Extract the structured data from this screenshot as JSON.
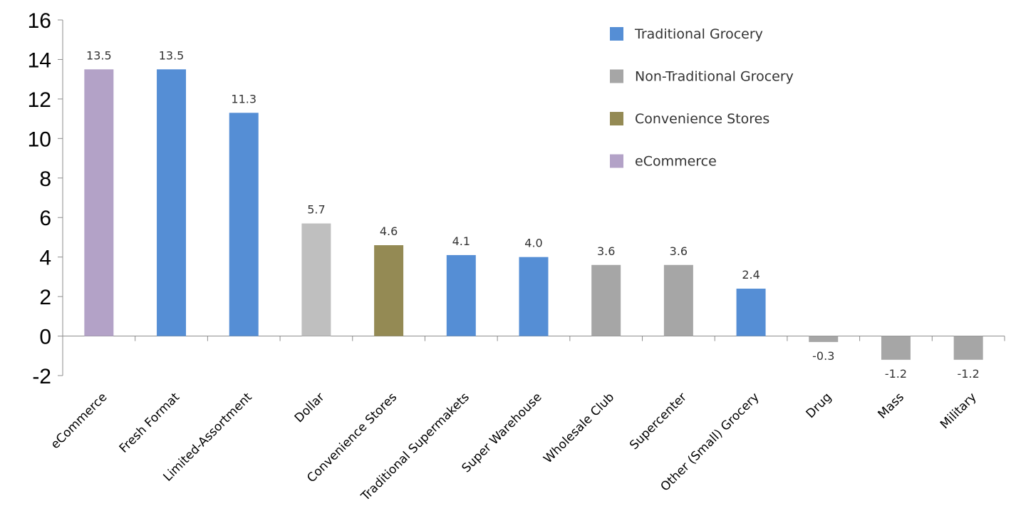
{
  "chart_data": {
    "type": "bar",
    "title": "",
    "xlabel": "",
    "ylabel": "",
    "ylim": [
      -2,
      16
    ],
    "yticks": [
      -2,
      0,
      2,
      4,
      6,
      8,
      10,
      12,
      14,
      16
    ],
    "grid": false,
    "legend_position": "top-right",
    "categories": [
      "eCommerce",
      "Fresh Format",
      "Limited-Assortment",
      "Dollar",
      "Convenience Stores",
      "Traditional Supermakets",
      "Super Warehouse",
      "Wholesale Club",
      "Supercenter",
      "Other (Small) Grocery",
      "Drug",
      "Mass",
      "Military"
    ],
    "values": [
      13.5,
      13.5,
      11.3,
      5.7,
      4.6,
      4.1,
      4.0,
      3.6,
      3.6,
      2.4,
      -0.3,
      -1.2,
      -1.2
    ],
    "data_labels": [
      "13.5",
      "13.5",
      "11.3",
      "5.7",
      "4.6",
      "4.1",
      "4.0",
      "3.6",
      "3.6",
      "2.4",
      "-0.3",
      "-1.2",
      "-1.2"
    ],
    "groups": [
      "eCommerce",
      "Traditional Grocery",
      "Traditional Grocery",
      "Non-Traditional Grocery",
      "Convenience Stores",
      "Traditional Grocery",
      "Traditional Grocery",
      "Non-Traditional Grocery",
      "Non-Traditional Grocery",
      "Traditional Grocery",
      "Non-Traditional Grocery",
      "Non-Traditional Grocery",
      "Non-Traditional Grocery"
    ],
    "bar_colors": [
      "#b3a2c7",
      "#558ed5",
      "#558ed5",
      "#bfbfbf",
      "#948a54",
      "#558ed5",
      "#558ed5",
      "#a6a6a6",
      "#a6a6a6",
      "#558ed5",
      "#a6a6a6",
      "#a6a6a6",
      "#a6a6a6"
    ],
    "legend": [
      {
        "name": "Traditional Grocery",
        "color": "#558ed5"
      },
      {
        "name": "Non-Traditional Grocery",
        "color": "#a6a6a6"
      },
      {
        "name": "Convenience Stores",
        "color": "#948a54"
      },
      {
        "name": "eCommerce",
        "color": "#b3a2c7"
      }
    ]
  }
}
